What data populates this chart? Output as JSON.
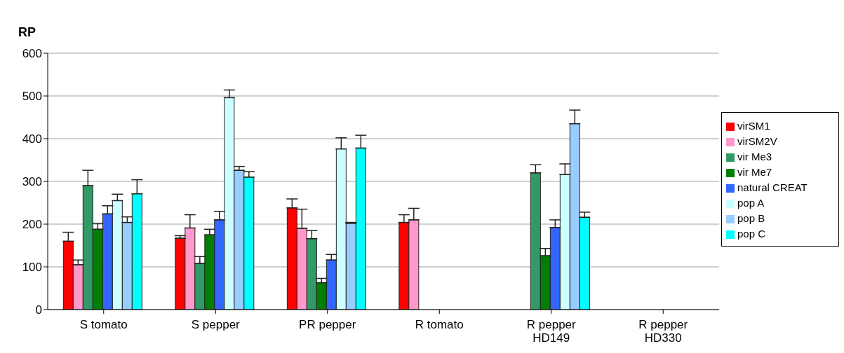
{
  "chart_data": {
    "type": "bar",
    "title": "RP",
    "categories": [
      "S tomato",
      "S pepper",
      "PR pepper",
      "R tomato",
      "R pepper HD149",
      "R pepper HD330"
    ],
    "series": [
      {
        "name": "virSM1",
        "color": "#ff0000",
        "values": [
          160,
          167,
          238,
          204,
          null,
          null
        ],
        "errors": [
          [
            160,
            181
          ],
          [
            167,
            173
          ],
          [
            238,
            259
          ],
          [
            204,
            222
          ],
          null,
          null
        ]
      },
      {
        "name": "virSM2V",
        "color": "#ff99cc",
        "values": [
          105,
          191,
          190,
          210,
          null,
          null
        ],
        "errors": [
          [
            105,
            116
          ],
          [
            191,
            222
          ],
          [
            190,
            235
          ],
          [
            210,
            237
          ],
          null,
          null
        ]
      },
      {
        "name": "vir Me3",
        "color": "#339966",
        "values": [
          290,
          108,
          166,
          null,
          320,
          null
        ],
        "errors": [
          [
            290,
            326
          ],
          [
            108,
            124
          ],
          [
            166,
            185
          ],
          null,
          [
            320,
            339
          ],
          null
        ]
      },
      {
        "name": "vir Me7",
        "color": "#008000",
        "values": [
          188,
          175,
          63,
          null,
          126,
          null
        ],
        "errors": [
          [
            188,
            202
          ],
          [
            175,
            188
          ],
          [
            63,
            73
          ],
          null,
          [
            126,
            143
          ],
          null
        ]
      },
      {
        "name": "natural CREAT",
        "color": "#3366ff",
        "values": [
          224,
          210,
          116,
          null,
          192,
          null
        ],
        "errors": [
          [
            224,
            243
          ],
          [
            210,
            230
          ],
          [
            116,
            129
          ],
          null,
          [
            192,
            210
          ],
          null
        ]
      },
      {
        "name": "pop A",
        "color": "#ccffff",
        "values": [
          255,
          496,
          376,
          null,
          316,
          null
        ],
        "errors": [
          [
            255,
            270
          ],
          [
            496,
            514
          ],
          [
            376,
            402
          ],
          null,
          [
            316,
            341
          ],
          null
        ]
      },
      {
        "name": "pop B",
        "color": "#99ccff",
        "values": [
          204,
          326,
          202,
          null,
          435,
          null
        ],
        "errors": [
          [
            204,
            217
          ],
          [
            326,
            335
          ],
          [
            202,
            204
          ],
          null,
          [
            435,
            467
          ],
          null
        ]
      },
      {
        "name": "pop C",
        "color": "#00ffff",
        "values": [
          271,
          310,
          378,
          null,
          216,
          null
        ],
        "errors": [
          [
            271,
            304
          ],
          [
            310,
            323
          ],
          [
            378,
            408
          ],
          null,
          [
            216,
            228
          ],
          null
        ]
      }
    ],
    "ylim": [
      0,
      600
    ],
    "yticks": [
      0,
      100,
      200,
      300,
      400,
      500,
      600
    ],
    "grid": "y",
    "legend": "right"
  }
}
